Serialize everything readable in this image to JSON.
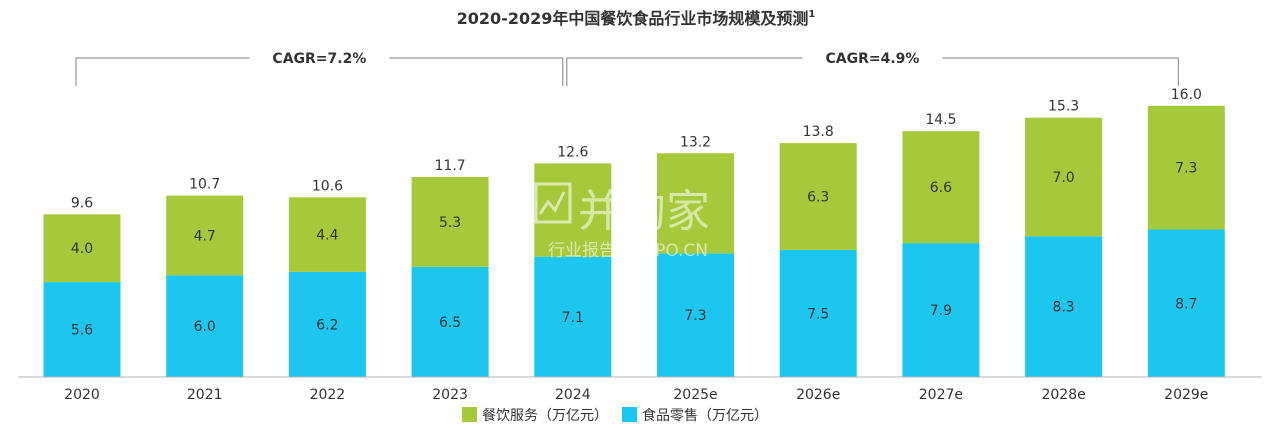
{
  "chart_data": {
    "type": "bar",
    "stacked": true,
    "title": "2020-2029年中国餐饮食品行业市场规模及预测",
    "title_superscript": "1",
    "categories": [
      "2020",
      "2021",
      "2022",
      "2023",
      "2024",
      "2025e",
      "2026e",
      "2027e",
      "2028e",
      "2029e"
    ],
    "series": [
      {
        "name": "食品零售（万亿元）",
        "color": "#1dc6ee",
        "values": [
          5.6,
          6.0,
          6.2,
          6.5,
          7.1,
          7.3,
          7.5,
          7.9,
          8.3,
          8.7
        ],
        "labels": [
          "5.6",
          "6.0",
          "6.2",
          "6.5",
          "7.1",
          "7.3",
          "7.5",
          "7.9",
          "8.3",
          "8.7"
        ]
      },
      {
        "name": "餐饮服务（万亿元）",
        "color": "#a5c93a",
        "values": [
          4.0,
          4.7,
          4.4,
          5.3,
          5.5,
          5.9,
          6.3,
          6.6,
          7.0,
          7.3
        ],
        "labels": [
          "4.0",
          "4.7",
          "4.4",
          "5.3",
          "",
          "",
          "6.3",
          "6.6",
          "7.0",
          "7.3"
        ]
      }
    ],
    "totals": [
      "9.6",
      "10.7",
      "10.6",
      "11.7",
      "12.6",
      "13.2",
      "13.8",
      "14.5",
      "15.3",
      "16.0"
    ],
    "cagr": [
      {
        "label": "CAGR=7.2%",
        "from": "2020",
        "to": "2024"
      },
      {
        "label": "CAGR=4.9%",
        "from": "2024",
        "to": "2029e"
      }
    ],
    "ylim": [
      0,
      17
    ],
    "grid": false,
    "legend_position": "bottom-center",
    "legend_order": [
      "餐饮服务（万亿元）",
      "食品零售（万亿元）"
    ]
  },
  "watermark": {
    "main": "并购家",
    "sub": "行业报告 IPOIPO.CN"
  }
}
